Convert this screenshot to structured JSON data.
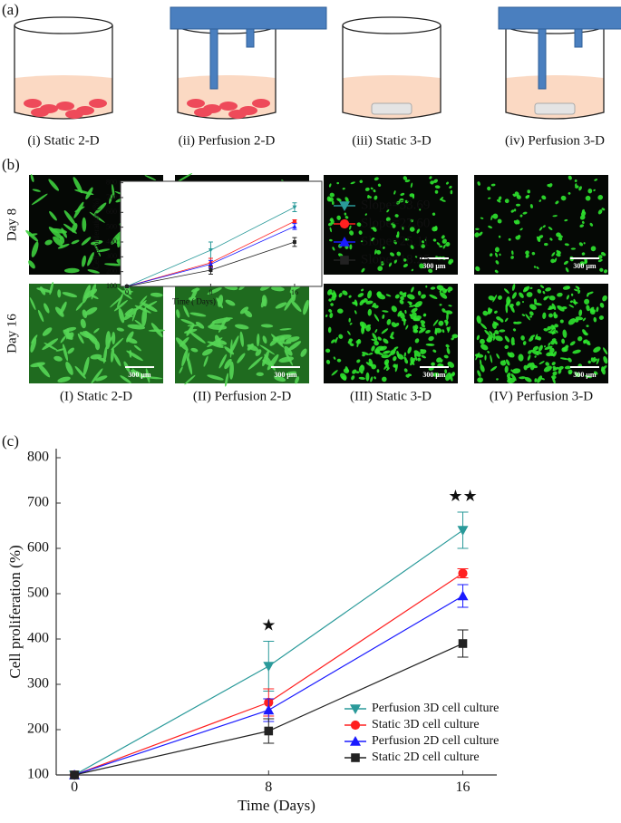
{
  "panel_a": {
    "label": "(a)",
    "captions": [
      "(i) Static  2-D",
      "(ii) Perfusion  2-D",
      "(iii) Static  3-D",
      "(iv) Perfusion 3-D"
    ]
  },
  "panel_b": {
    "label": "(b)",
    "rows": [
      "Day 8",
      "Day 16"
    ],
    "captions": [
      "(I) Static  2-D",
      "(II) Perfusion  2-D",
      "(III) Static  3-D",
      "(IV) Perfusion 3-D"
    ],
    "scale_bar": "300 μm"
  },
  "panel_c": {
    "label": "(c)"
  },
  "chart_data": [
    {
      "type": "line",
      "x_label": "Time (Days)",
      "y_label": "Cell proliferation (%)",
      "x": [
        0,
        8,
        16
      ],
      "xlim": [
        -0.75,
        17.4
      ],
      "xticks": [
        0,
        8,
        16
      ],
      "ylim": [
        100,
        820
      ],
      "yticks": [
        100,
        200,
        300,
        400,
        500,
        600,
        700,
        800
      ],
      "annotations": [
        "★",
        "★★"
      ],
      "series": [
        {
          "name": "Perfusion 3D cell culture",
          "color": "#2a9a9a",
          "marker": "triangle-down",
          "values": [
            100,
            340,
            640
          ],
          "error": [
            0,
            55,
            40
          ]
        },
        {
          "name": "Static 3D cell culture",
          "color": "#ff2020",
          "marker": "circle",
          "values": [
            100,
            260,
            545
          ],
          "error": [
            0,
            30,
            10
          ]
        },
        {
          "name": "Perfusion 2D cell culture",
          "color": "#1a1aff",
          "marker": "triangle-up",
          "values": [
            100,
            243,
            495
          ],
          "error": [
            0,
            25,
            25
          ]
        },
        {
          "name": "Static 2D cell culture",
          "color": "#222222",
          "marker": "square",
          "values": [
            100,
            197,
            390
          ],
          "error": [
            0,
            27,
            30
          ]
        }
      ]
    },
    {
      "type": "line",
      "x_label": "Time ( Days)",
      "y_label": "Cell proliferation (%)",
      "x": [
        0,
        8,
        16
      ],
      "xlim": [
        -0.6,
        18.6
      ],
      "xticks": [
        0,
        8,
        16
      ],
      "ylim": [
        100,
        810
      ],
      "yticks": [
        100,
        200,
        300,
        400,
        500,
        600,
        700,
        800
      ],
      "series": [
        {
          "name": "Slope=33.69",
          "color": "#2a9a9a",
          "marker": "triangle-down",
          "values": [
            100,
            345,
            635
          ],
          "error": [
            0,
            55,
            30
          ]
        },
        {
          "name": "Slope=27.60",
          "color": "#ff2020",
          "marker": "circle",
          "values": [
            100,
            260,
            540
          ],
          "error": [
            0,
            30,
            10
          ]
        },
        {
          "name": "Slope=25.11",
          "color": "#1a1aff",
          "marker": "triangle-up",
          "values": [
            100,
            250,
            505
          ],
          "error": [
            0,
            25,
            20
          ]
        },
        {
          "name": "Slope=18.25",
          "color": "#222222",
          "marker": "square",
          "values": [
            100,
            210,
            400
          ],
          "error": [
            0,
            27,
            30
          ]
        }
      ]
    }
  ]
}
